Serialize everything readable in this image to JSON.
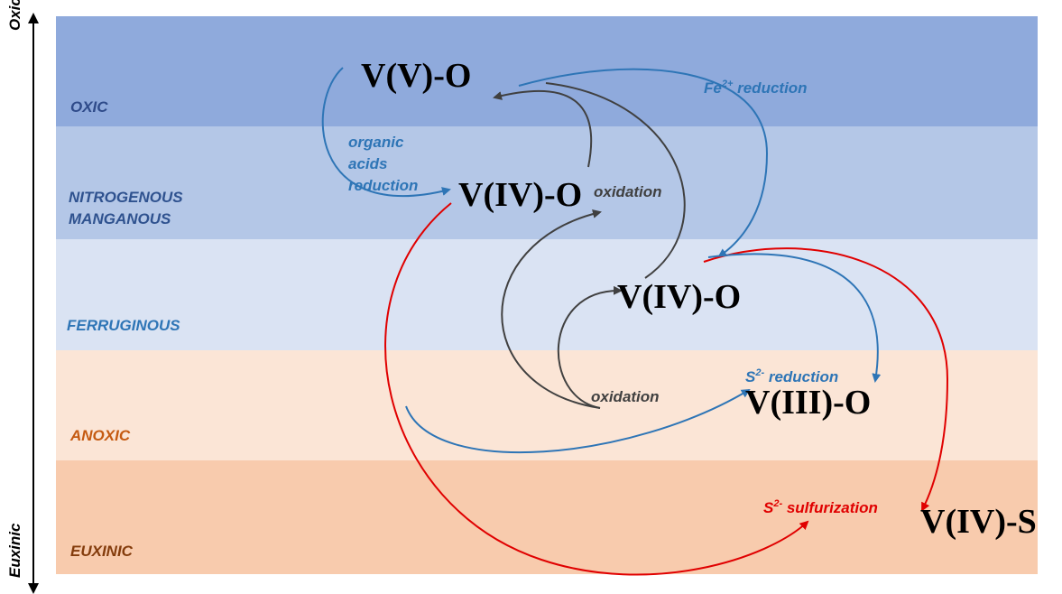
{
  "axis": {
    "top": "Oxic",
    "bottom": "Euxinic"
  },
  "zones": [
    {
      "lines": [
        "OXIC"
      ]
    },
    {
      "lines": [
        "NITROGENOUS",
        "MANGANOUS"
      ]
    },
    {
      "lines": [
        "FERRUGINOUS"
      ]
    },
    {
      "lines": [
        "ANOXIC"
      ]
    },
    {
      "lines": [
        "EUXINIC"
      ]
    }
  ],
  "species": [
    "V(V)-O",
    "V(IV)-O",
    "V(IV)-O",
    "V(III)-O",
    "V(IV)-S"
  ],
  "processes": {
    "organic": [
      "organic",
      "acids",
      "reduction"
    ],
    "fe": {
      "base": "Fe",
      "sup": "2+",
      "rest": " reduction"
    },
    "s_red": {
      "base": "S",
      "sup": "2-",
      "rest": " reduction"
    },
    "s_sulf": {
      "base": "S",
      "sup": "2-",
      "rest": " sulfurization"
    },
    "oxidation_1": "oxidation",
    "oxidation_2": "oxidation"
  }
}
